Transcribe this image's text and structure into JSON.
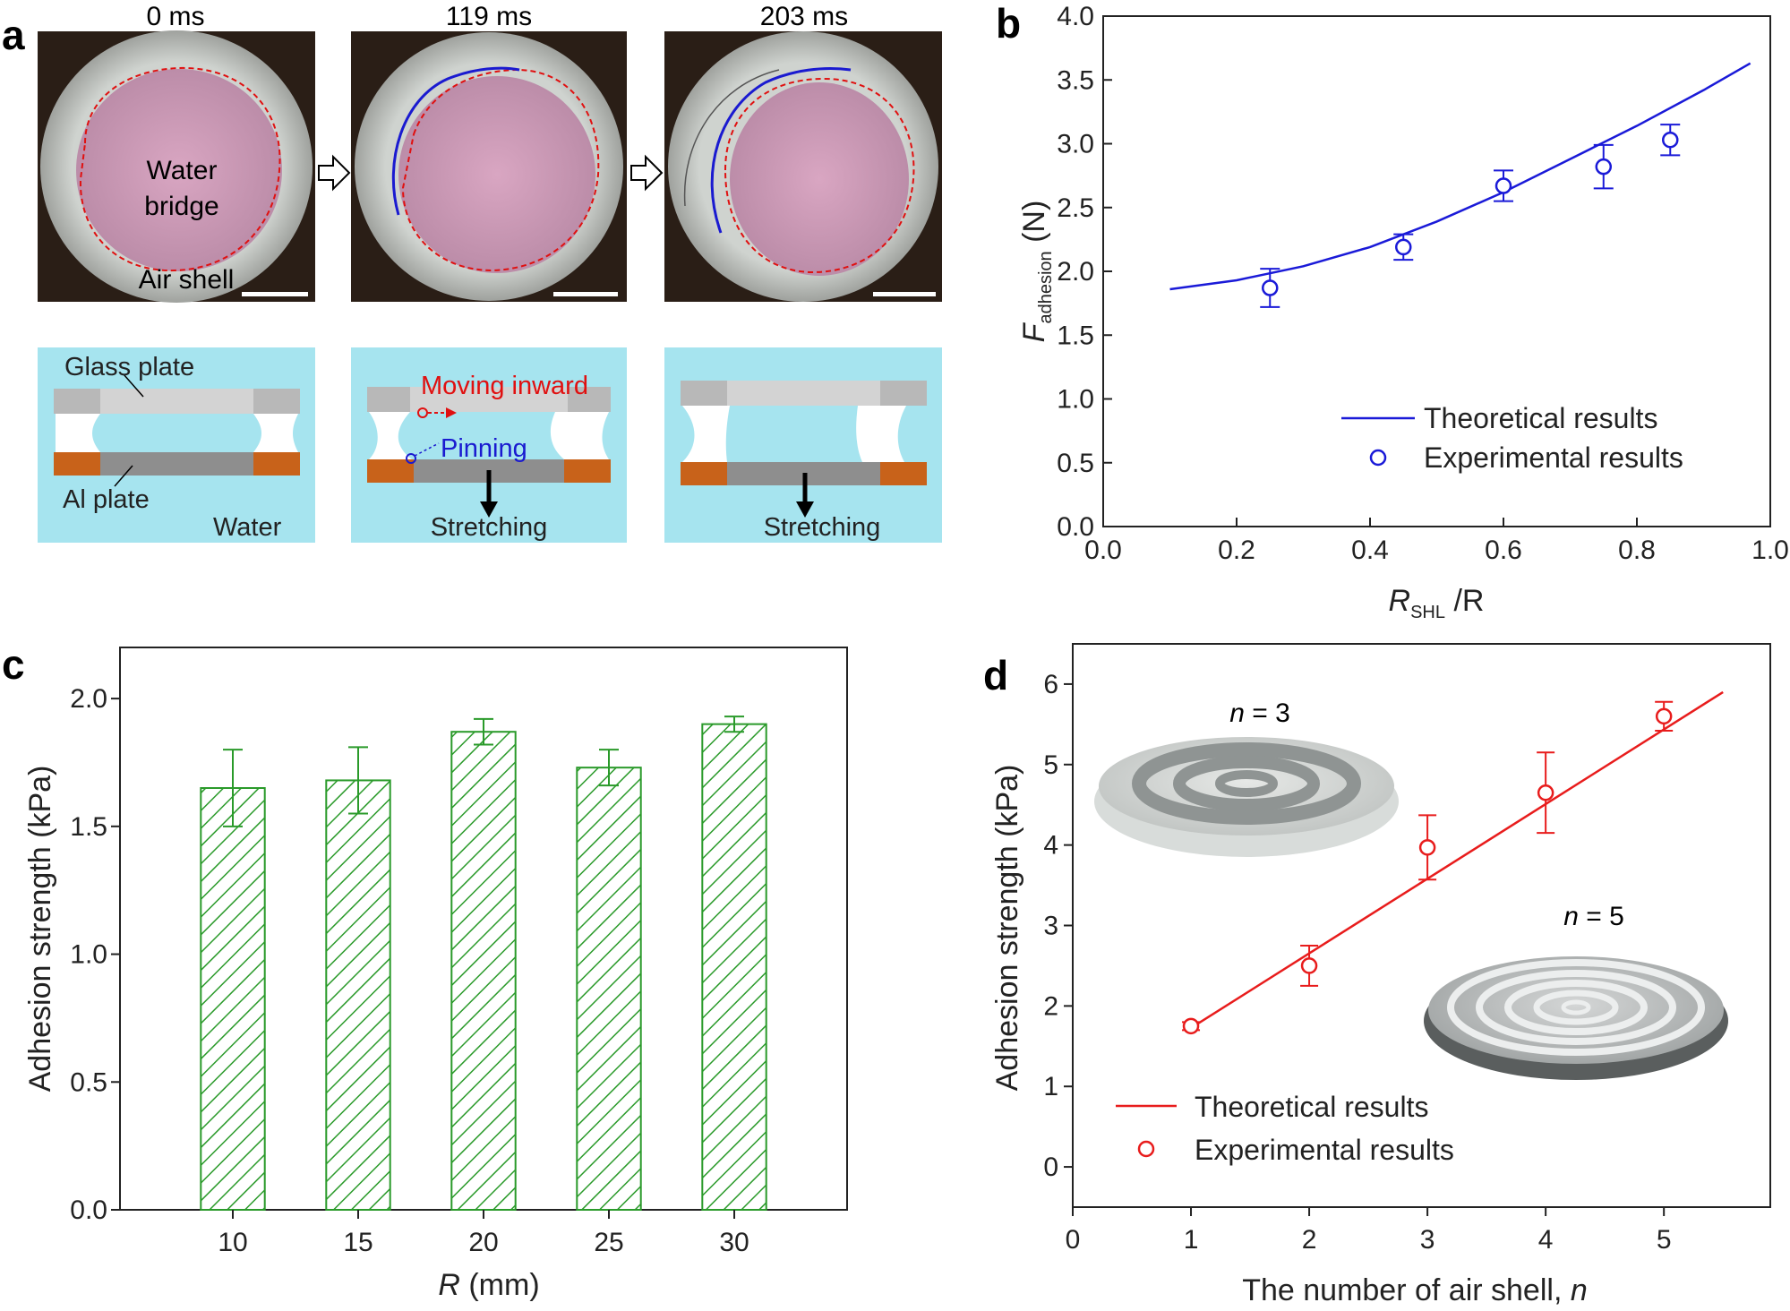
{
  "panel_labels": {
    "a": "a",
    "b": "b",
    "c": "c",
    "d": "d"
  },
  "panel_a": {
    "frames": [
      {
        "time": "0 ms"
      },
      {
        "time": "119 ms"
      },
      {
        "time": "203 ms"
      }
    ],
    "photo_labels": {
      "water": "Water",
      "bridge": "bridge",
      "air_shell": "Air shell"
    },
    "diagram_labels": {
      "glass_plate": "Glass plate",
      "al_plate": "Al plate",
      "water": "Water",
      "moving_inward": "Moving inward",
      "pinning": "Pinning",
      "stretching": "Stretching"
    },
    "colors": {
      "water": "#a6e4ef",
      "glass": "#d3d3d3",
      "glass_dark": "#b8b8b8",
      "al": "#8e8e8e",
      "copper": "#c8621a",
      "moving": "#e01010",
      "pinning": "#1a1ad0"
    }
  },
  "chart_data": [
    {
      "id": "b",
      "type": "scatter",
      "xlabel_main": "R",
      "xlabel_sub": "SHL",
      "xlabel_tail": " /R",
      "ylabel_main": "F",
      "ylabel_sub": "adhesion",
      "ylabel_tail": " (N)",
      "xlim": [
        0.0,
        1.0
      ],
      "ylim": [
        0.0,
        4.0
      ],
      "xticks": [
        "0.0",
        "0.2",
        "0.4",
        "0.6",
        "0.8",
        "1.0"
      ],
      "yticks": [
        "0.0",
        "0.5",
        "1.0",
        "1.5",
        "2.0",
        "2.5",
        "3.0",
        "3.5",
        "4.0"
      ],
      "color": "#1a1ad8",
      "theory": {
        "name": "Theoretical results",
        "x": [
          0.1,
          0.2,
          0.3,
          0.4,
          0.5,
          0.6,
          0.7,
          0.8,
          0.9,
          0.97
        ],
        "y": [
          1.86,
          1.93,
          2.04,
          2.19,
          2.39,
          2.62,
          2.88,
          3.14,
          3.42,
          3.63
        ]
      },
      "experiment": {
        "name": "Experimental results",
        "x": [
          0.25,
          0.45,
          0.6,
          0.75,
          0.85
        ],
        "y": [
          1.87,
          2.19,
          2.67,
          2.82,
          3.03
        ],
        "err": [
          0.15,
          0.1,
          0.12,
          0.17,
          0.12
        ]
      }
    },
    {
      "id": "c",
      "type": "bar",
      "xlabel_main": "R",
      "xlabel_tail": " (mm)",
      "ylabel": "Adhesion strength (kPa)",
      "categories": [
        "10",
        "15",
        "20",
        "25",
        "30"
      ],
      "values": [
        1.65,
        1.68,
        1.87,
        1.73,
        1.9
      ],
      "err": [
        0.15,
        0.13,
        0.05,
        0.07,
        0.03
      ],
      "ylim": [
        0.0,
        2.2
      ],
      "yticks": [
        "0.0",
        "0.5",
        "1.0",
        "1.5",
        "2.0"
      ],
      "color": "#2a9a2a"
    },
    {
      "id": "d",
      "type": "scatter",
      "xlabel": "The number of air shell, ",
      "xlabel_var": "n",
      "ylabel": "Adhesion strength (kPa)",
      "xlim": [
        0,
        5.9
      ],
      "ylim": [
        -0.5,
        6.5
      ],
      "xticks": [
        "0",
        "1",
        "2",
        "3",
        "4",
        "5"
      ],
      "yticks": [
        "0",
        "1",
        "2",
        "3",
        "4",
        "5",
        "6"
      ],
      "color": "#e81c1c",
      "theory": {
        "name": "Theoretical results",
        "x": [
          0.95,
          5.5
        ],
        "y": [
          1.68,
          5.9
        ]
      },
      "experiment": {
        "name": "Experimental results",
        "x": [
          1,
          2,
          3,
          4,
          5
        ],
        "y": [
          1.75,
          2.5,
          3.97,
          4.65,
          5.6
        ],
        "err": [
          0.05,
          0.25,
          0.4,
          0.5,
          0.18
        ]
      },
      "insets": [
        {
          "var": "n",
          "value": " = 3"
        },
        {
          "var": "n",
          "value": " = 5"
        }
      ]
    }
  ]
}
